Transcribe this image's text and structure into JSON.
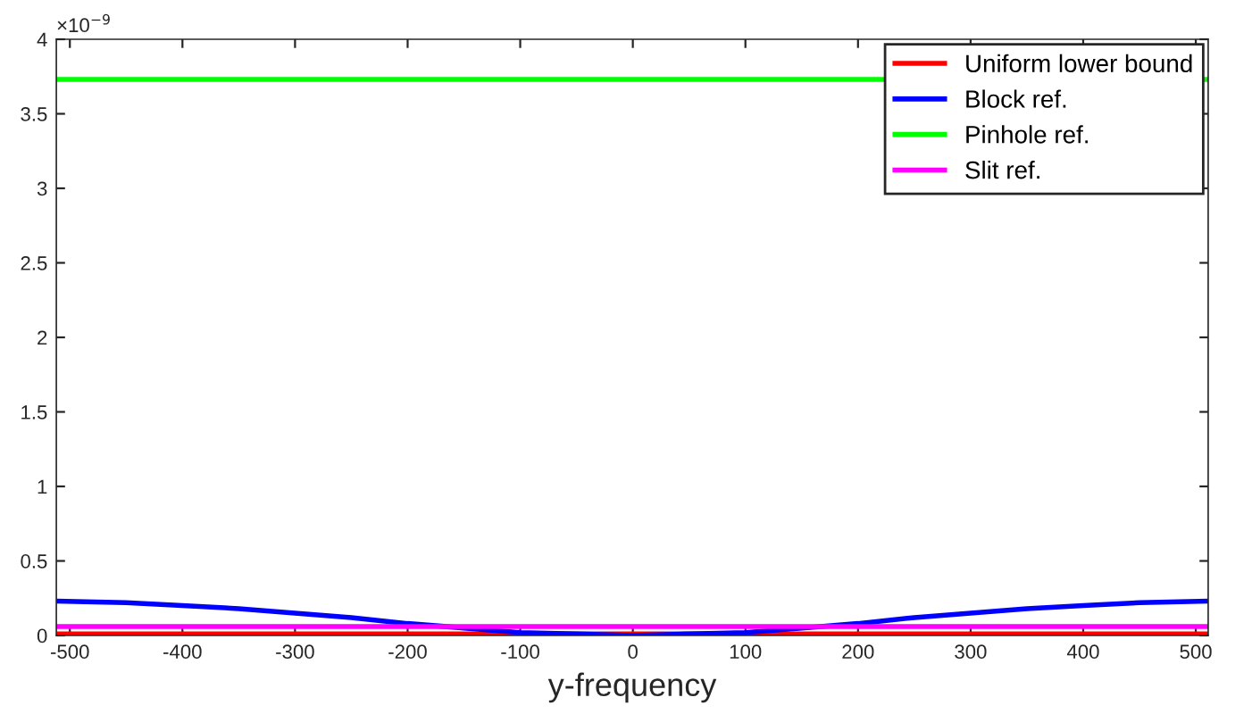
{
  "chart_data": {
    "type": "line",
    "xlabel": "y-frequency",
    "annotations": [
      "×10$^{−9}$"
    ],
    "xlim": [
      -512,
      511
    ],
    "xticks": [
      -500,
      -400,
      -300,
      -200,
      -100,
      0,
      100,
      200,
      300,
      400,
      500
    ],
    "ylim": [
      0,
      4
    ],
    "yticks": [
      0,
      0.5,
      1,
      1.5,
      2,
      2.5,
      3,
      3.5,
      4
    ],
    "grid": false,
    "legend": "top right",
    "line_style": "solid",
    "marker": "none",
    "series": [
      {
        "name": "Uniform lower bound",
        "color": "#ff0000",
        "x": [
          -512,
          511
        ],
        "values": [
          0.01,
          0.01
        ]
      },
      {
        "name": "Block ref.",
        "color": "#0000ff",
        "x": [
          -512,
          -450,
          -400,
          -350,
          -300,
          -250,
          -200,
          -150,
          -100,
          -50,
          0,
          50,
          100,
          150,
          200,
          250,
          300,
          350,
          400,
          450,
          511
        ],
        "values": [
          0.23,
          0.22,
          0.2,
          0.18,
          0.15,
          0.12,
          0.08,
          0.05,
          0.02,
          0.01,
          0.0,
          0.01,
          0.02,
          0.05,
          0.08,
          0.12,
          0.15,
          0.18,
          0.2,
          0.22,
          0.23
        ]
      },
      {
        "name": "Pinhole ref.",
        "color": "#00ff00",
        "x": [
          -512,
          511
        ],
        "values": [
          3.73,
          3.73
        ]
      },
      {
        "name": "Slit ref.",
        "color": "#ff00ff",
        "x": [
          -512,
          511
        ],
        "values": [
          0.06,
          0.06
        ]
      }
    ]
  }
}
